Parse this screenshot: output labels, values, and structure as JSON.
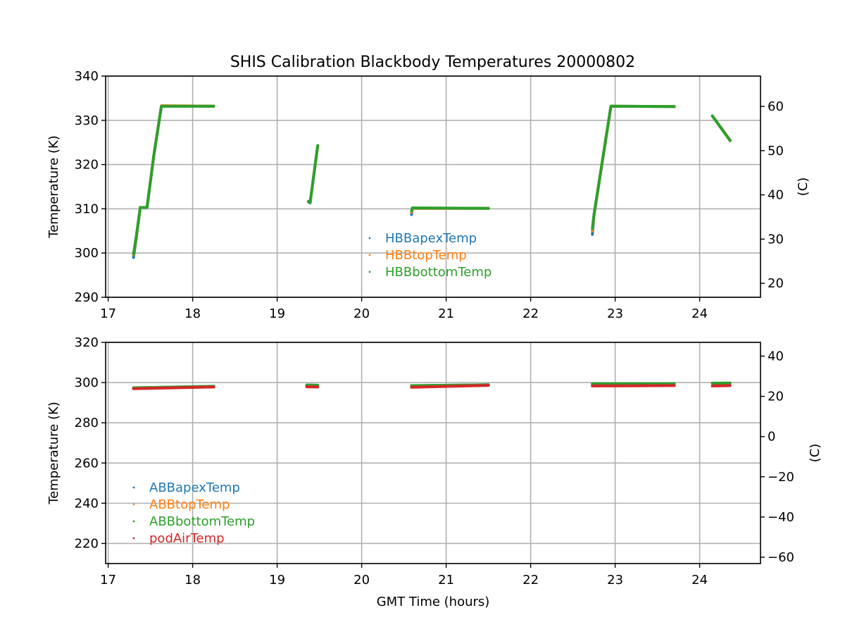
{
  "chart_data": [
    {
      "type": "scatter",
      "title": "SHIS Calibration Blackbody Temperatures 20000802",
      "xlabel": "",
      "ylabel": "Temperature (K)",
      "y2label": "(C)",
      "xlim": [
        16.97,
        24.72
      ],
      "ylim": [
        290,
        340
      ],
      "y2_offset": -273.15,
      "xticks": [
        17,
        18,
        19,
        20,
        21,
        22,
        23,
        24
      ],
      "yticks": [
        290,
        300,
        310,
        320,
        330,
        340
      ],
      "y2ticks": [
        20,
        30,
        40,
        50,
        60
      ],
      "grid": true,
      "legend_position": "center",
      "series": [
        {
          "name": "HBBapexTemp",
          "color": "#1f77b4",
          "segments": [
            [
              [
                17.3,
                299.0
              ],
              [
                17.33,
                303.0
              ],
              [
                17.38,
                310.3
              ],
              [
                17.46,
                310.3
              ],
              [
                17.54,
                322.0
              ],
              [
                17.63,
                333.2
              ],
              [
                18.25,
                333.2
              ]
            ],
            [
              [
                19.37,
                311.6
              ],
              [
                19.39,
                311.3
              ],
              [
                19.48,
                324.3
              ]
            ],
            [
              [
                20.59,
                308.7
              ],
              [
                20.6,
                310.1
              ],
              [
                21.5,
                310.1
              ]
            ],
            [
              [
                22.73,
                304.2
              ],
              [
                22.75,
                308.5
              ],
              [
                22.95,
                333.2
              ],
              [
                23.7,
                333.1
              ]
            ],
            [
              [
                24.15,
                331.0
              ],
              [
                24.36,
                325.5
              ]
            ]
          ]
        },
        {
          "name": "HBBtopTemp",
          "color": "#ff7f0e",
          "segments": [
            [
              [
                17.3,
                299.6
              ],
              [
                17.33,
                303.2
              ],
              [
                17.38,
                310.3
              ],
              [
                17.46,
                310.3
              ],
              [
                17.54,
                322.0
              ],
              [
                17.63,
                333.3
              ],
              [
                18.25,
                333.2
              ]
            ],
            [
              [
                19.37,
                311.7
              ],
              [
                19.39,
                311.4
              ],
              [
                19.48,
                324.2
              ]
            ],
            [
              [
                20.59,
                309.2
              ],
              [
                20.6,
                310.1
              ],
              [
                21.5,
                310.1
              ]
            ],
            [
              [
                22.73,
                305.0
              ],
              [
                22.75,
                308.6
              ],
              [
                22.95,
                333.2
              ],
              [
                23.7,
                333.1
              ]
            ],
            [
              [
                24.15,
                331.0
              ],
              [
                24.36,
                325.5
              ]
            ]
          ]
        },
        {
          "name": "HBBbottomTemp",
          "color": "#2ca02c",
          "segments": [
            [
              [
                17.3,
                299.8
              ],
              [
                17.33,
                303.4
              ],
              [
                17.38,
                310.3
              ],
              [
                17.46,
                310.3
              ],
              [
                17.54,
                322.0
              ],
              [
                17.63,
                333.2
              ],
              [
                18.25,
                333.2
              ]
            ],
            [
              [
                19.37,
                311.7
              ],
              [
                19.39,
                311.4
              ],
              [
                19.48,
                324.3
              ]
            ],
            [
              [
                20.59,
                309.5
              ],
              [
                20.6,
                310.2
              ],
              [
                21.5,
                310.1
              ]
            ],
            [
              [
                22.73,
                305.5
              ],
              [
                22.75,
                308.8
              ],
              [
                22.95,
                333.2
              ],
              [
                23.7,
                333.1
              ]
            ],
            [
              [
                24.15,
                331.0
              ],
              [
                24.36,
                325.4
              ]
            ]
          ]
        }
      ]
    },
    {
      "type": "scatter",
      "title": "",
      "xlabel": "GMT Time (hours)",
      "ylabel": "Temperature (K)",
      "y2label": "(C)",
      "xlim": [
        16.97,
        24.72
      ],
      "ylim": [
        210,
        320
      ],
      "y2_offset": -273.15,
      "xticks": [
        17,
        18,
        19,
        20,
        21,
        22,
        23,
        24
      ],
      "yticks": [
        220,
        240,
        260,
        280,
        300,
        320
      ],
      "y2ticks": [
        -60,
        -40,
        -20,
        0,
        20,
        40
      ],
      "grid": true,
      "legend_position": "lower-left",
      "series": [
        {
          "name": "ABBapexTemp",
          "color": "#1f77b4",
          "segments": [
            [
              [
                17.3,
                297.3
              ],
              [
                18.25,
                298.2
              ]
            ],
            [
              [
                19.35,
                298.7
              ],
              [
                19.48,
                298.6
              ]
            ],
            [
              [
                20.59,
                298.4
              ],
              [
                21.5,
                298.9
              ]
            ],
            [
              [
                22.73,
                299.3
              ],
              [
                23.7,
                299.3
              ]
            ],
            [
              [
                24.15,
                299.6
              ],
              [
                24.36,
                299.7
              ]
            ]
          ]
        },
        {
          "name": "ABBtopTemp",
          "color": "#ff7f0e",
          "segments": [
            [
              [
                17.3,
                297.3
              ],
              [
                18.25,
                298.1
              ]
            ],
            [
              [
                19.35,
                298.6
              ],
              [
                19.48,
                298.5
              ]
            ],
            [
              [
                20.59,
                298.3
              ],
              [
                21.5,
                298.8
              ]
            ],
            [
              [
                22.73,
                299.2
              ],
              [
                23.7,
                299.2
              ]
            ],
            [
              [
                24.15,
                299.5
              ],
              [
                24.36,
                299.6
              ]
            ]
          ]
        },
        {
          "name": "ABBbottomTemp",
          "color": "#2ca02c",
          "segments": [
            [
              [
                17.3,
                297.4
              ],
              [
                18.25,
                298.1
              ]
            ],
            [
              [
                19.35,
                298.8
              ],
              [
                19.48,
                298.7
              ]
            ],
            [
              [
                20.59,
                298.5
              ],
              [
                21.5,
                298.9
              ]
            ],
            [
              [
                22.73,
                299.4
              ],
              [
                23.7,
                299.4
              ]
            ],
            [
              [
                24.15,
                299.7
              ],
              [
                24.36,
                299.8
              ]
            ]
          ]
        },
        {
          "name": "podAirTemp",
          "color": "#d62728",
          "segments": [
            [
              [
                17.3,
                297.0
              ],
              [
                18.25,
                297.8
              ]
            ],
            [
              [
                19.35,
                297.9
              ],
              [
                19.48,
                297.8
              ]
            ],
            [
              [
                20.59,
                297.7
              ],
              [
                21.5,
                298.6
              ]
            ],
            [
              [
                22.73,
                298.3
              ],
              [
                23.7,
                298.5
              ]
            ],
            [
              [
                24.15,
                298.3
              ],
              [
                24.36,
                298.5
              ]
            ]
          ]
        }
      ]
    }
  ]
}
